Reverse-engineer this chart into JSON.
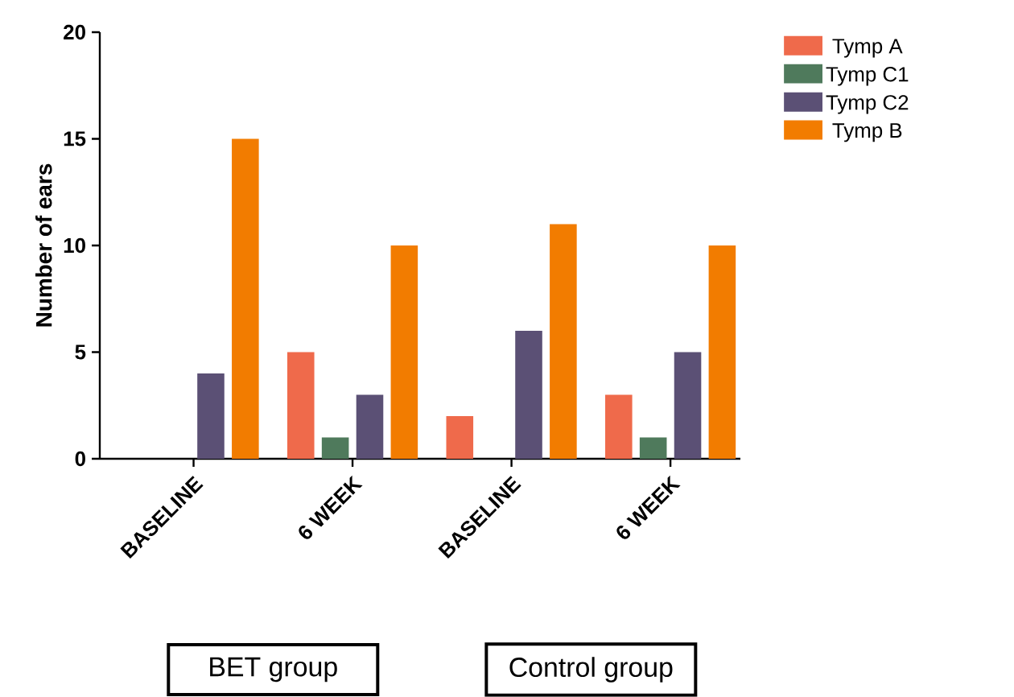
{
  "chart_data": {
    "type": "bar",
    "ylabel": "Number of ears",
    "categories": [
      "BASELINE",
      "6 WEEK",
      "BASELINE",
      "6 WEEK"
    ],
    "series": [
      {
        "name": "Tymp A",
        "color": "#ef6a4b",
        "values": [
          0,
          5,
          2,
          3
        ]
      },
      {
        "name": "Tymp C1",
        "color": "#4f7a5c",
        "values": [
          0,
          1,
          0,
          1
        ]
      },
      {
        "name": "Tymp C2",
        "color": "#5b5075",
        "values": [
          4,
          3,
          6,
          5
        ]
      },
      {
        "name": "Tymp B",
        "color": "#f27c00",
        "values": [
          15,
          10,
          11,
          10
        ]
      }
    ],
    "ylim": [
      0,
      20
    ],
    "yticks": [
      0,
      5,
      10,
      15,
      20
    ],
    "legend": "top right",
    "annotations": [
      "BET group",
      "Control group"
    ]
  }
}
